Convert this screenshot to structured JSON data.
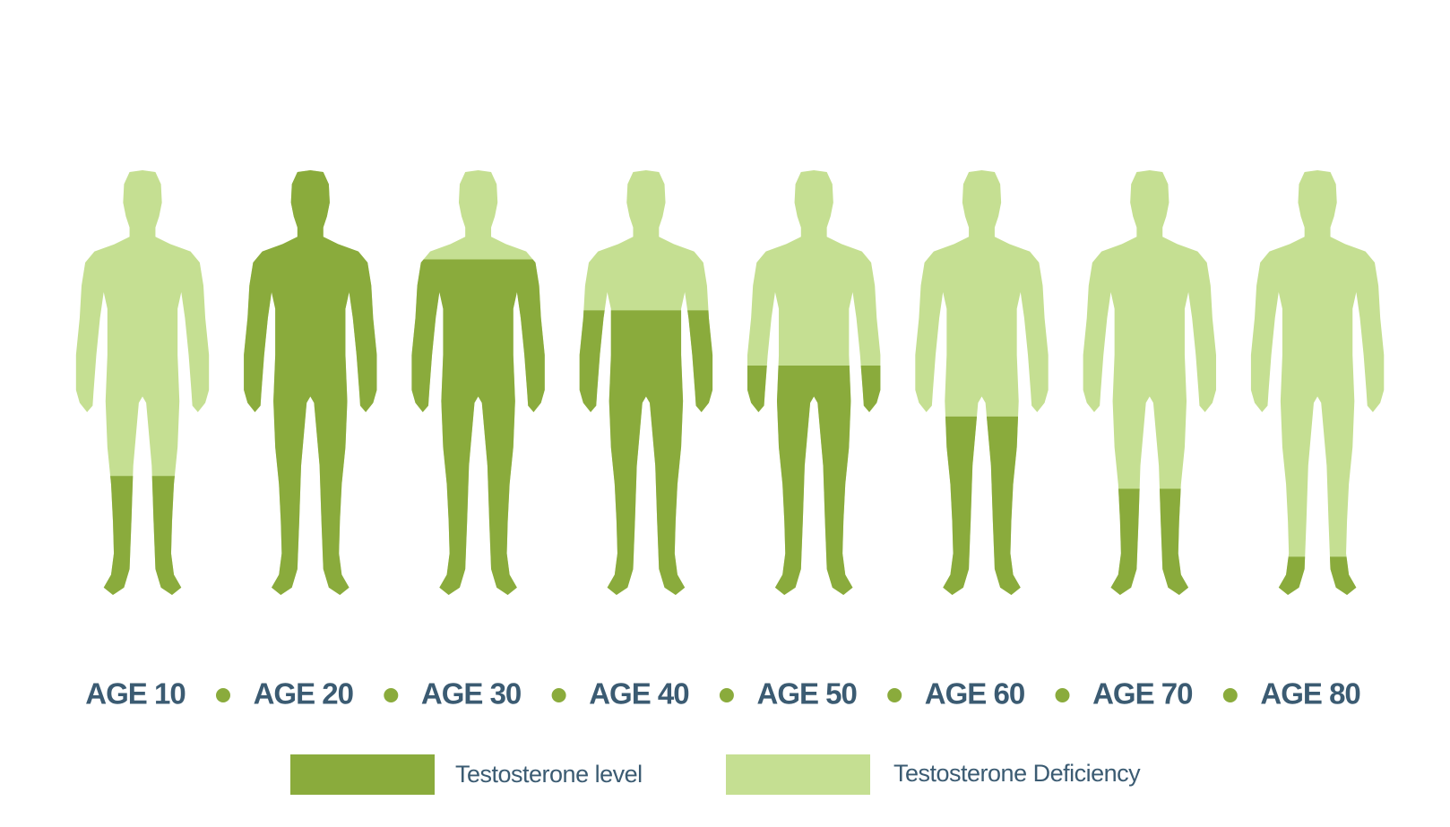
{
  "chart_data": {
    "type": "pictogram",
    "categories": [
      "AGE 10",
      "AGE 20",
      "AGE 30",
      "AGE 40",
      "AGE 50",
      "AGE 60",
      "AGE 70",
      "AGE 80"
    ],
    "values": [
      28,
      100,
      79,
      67,
      54,
      42,
      25,
      9
    ],
    "ylim": [
      0,
      100
    ],
    "legend": [
      {
        "name": "Testosterone level",
        "color": "#8aab3c"
      },
      {
        "name": "Testosterone Deficiency",
        "color": "#c5df92"
      }
    ]
  }
}
